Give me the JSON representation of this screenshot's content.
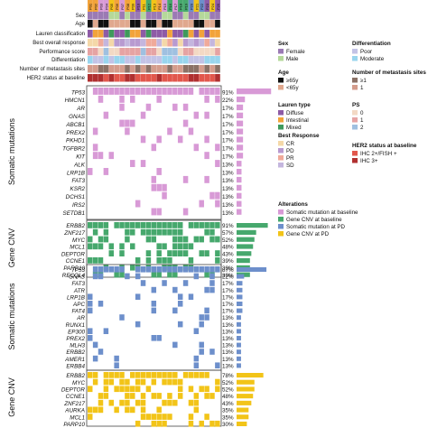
{
  "chart_data": {
    "type": "heatmap",
    "title": "",
    "patients": [
      "P01",
      "P02",
      "P03",
      "P04",
      "P05",
      "P06",
      "P07",
      "P08",
      "P09",
      "P10",
      "P11",
      "P12",
      "P13",
      "P14",
      "P15",
      "P16",
      "P17",
      "P18",
      "P19",
      "P20",
      "P21",
      "P22",
      "P23",
      "P24",
      "P25"
    ],
    "annotation_labels": [
      "Sex",
      "Age",
      "Lauren classification",
      "Best overall response",
      "Performance score",
      "Differentiation",
      "Number of metastasis sites",
      "HER2 status at baseline"
    ],
    "group_labels": [
      "Somatic mutations",
      "Gene CNV",
      "Somatic mutations",
      "Gene CNV"
    ],
    "panels": [
      {
        "name": "Somatic mutations",
        "alteration": "baseline_mutation",
        "genes": [
          "TP53",
          "HMCN1",
          "AR",
          "GNAS",
          "ABCB1",
          "PREX2",
          "PKHD1",
          "TGFBR2",
          "KIT",
          "ALK",
          "LRP1B",
          "FAT3",
          "KSR2",
          "DCHS1",
          "IRS2",
          "SETDB1"
        ],
        "frequencies": [
          "91%",
          "22%",
          "17%",
          "17%",
          "17%",
          "17%",
          "17%",
          "17%",
          "17%",
          "13%",
          "13%",
          "13%",
          "13%",
          "13%",
          "13%",
          "13%"
        ]
      },
      {
        "name": "Gene CNV",
        "alteration": "baseline_cnv",
        "genes": [
          "ERBB2",
          "ZNF217",
          "MYC",
          "MCL1",
          "DEPTOR",
          "CCNE1",
          "PARP10",
          "RECQL4"
        ],
        "frequencies": [
          "91%",
          "57%",
          "52%",
          "48%",
          "43%",
          "39%",
          "39%",
          "39%"
        ]
      },
      {
        "name": "Somatic mutations",
        "alteration": "pd_mutation",
        "genes": [
          "TP53",
          "GNAS",
          "FAT3",
          "ATR",
          "LRP1B",
          "APC",
          "FAT4",
          "AR",
          "RUNX1",
          "EP300",
          "PREX2",
          "MLH3",
          "ERBB2",
          "AMER1",
          "ERBB4"
        ],
        "frequencies": [
          "87%",
          "22%",
          "17%",
          "17%",
          "17%",
          "17%",
          "17%",
          "13%",
          "13%",
          "13%",
          "13%",
          "13%",
          "13%",
          "13%",
          "13%"
        ]
      },
      {
        "name": "Gene CNV",
        "alteration": "pd_cnv",
        "genes": [
          "ERBB2",
          "MYC",
          "DEPTOR",
          "CCNE1",
          "ZNF217",
          "AURKA",
          "MCL1",
          "PARP10"
        ],
        "frequencies": [
          "78%",
          "52%",
          "52%",
          "48%",
          "43%",
          "35%",
          "35%",
          "30%"
        ]
      }
    ],
    "legend": {
      "sex": {
        "title": "Sex",
        "items": [
          {
            "label": "Female",
            "color": "#9b7ab4"
          },
          {
            "label": "Male",
            "color": "#b5d89a"
          }
        ]
      },
      "age": {
        "title": "Age",
        "items": [
          {
            "label": "≥65y",
            "color": "#111111"
          },
          {
            "label": "<65y",
            "color": "#e0a88e"
          }
        ]
      },
      "lauren": {
        "title": "Lauren type",
        "items": [
          {
            "label": "Diffuse",
            "color": "#8e5ba6"
          },
          {
            "label": "Intestinal",
            "color": "#f2a33a"
          },
          {
            "label": "Mixed",
            "color": "#3f9a5c"
          }
        ]
      },
      "response": {
        "title": "Best Response",
        "items": [
          {
            "label": "CR",
            "color": "#f4d8a8"
          },
          {
            "label": "PD",
            "color": "#b89ad0"
          },
          {
            "label": "PR",
            "color": "#f0aa9a"
          },
          {
            "label": "SD",
            "color": "#c4b6de"
          }
        ]
      },
      "differentiation": {
        "title": "Differentiation",
        "items": [
          {
            "label": "Poor",
            "color": "#c3c3e6"
          },
          {
            "label": "Moderate",
            "color": "#99d5ee"
          }
        ]
      },
      "metastasis": {
        "title": "Number of metastasis sites",
        "items": [
          {
            "label": "≥1",
            "color": "#8b7166"
          },
          {
            "label": "1",
            "color": "#d49c8c"
          }
        ]
      },
      "ps": {
        "title": "PS",
        "items": [
          {
            "label": "0",
            "color": "#f3d9c4"
          },
          {
            "label": "1",
            "color": "#e6a3a3"
          },
          {
            "label": "2",
            "color": "#9fc0e0"
          }
        ]
      },
      "her2": {
        "title": "HER2 status at baseline",
        "items": [
          {
            "label": "IHC 2+/FISH +",
            "color": "#e2574c"
          },
          {
            "label": "IHC 3+",
            "color": "#b03030"
          }
        ]
      },
      "alterations": {
        "title": "Alterations",
        "items": [
          {
            "label": "Somatic mutation at baseline",
            "color": "#d89ad6"
          },
          {
            "label": "Gene CNV at baseline",
            "color": "#46a86d"
          },
          {
            "label": "Somatic mutation at PD",
            "color": "#6d8fcb"
          },
          {
            "label": "Gene CNV at PD",
            "color": "#f2c418"
          }
        ]
      }
    }
  }
}
